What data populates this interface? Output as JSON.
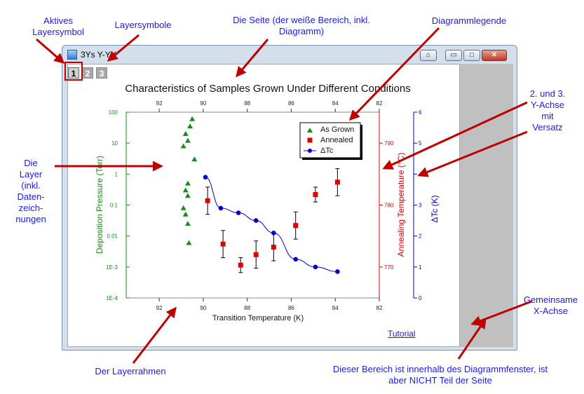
{
  "annotations": {
    "active_layer_icon": [
      "Aktives",
      "Layersymbol"
    ],
    "layer_icons": "Layersymbole",
    "page": [
      "Die Seite (der weiße Bereich, inkl.",
      "Diagramm)"
    ],
    "legend": "Diagrammlegende",
    "y_axes": [
      "2. und 3.",
      "Y-Achse",
      "mit",
      "Versatz"
    ],
    "layers": [
      "Die",
      "Layer",
      "(inkl.",
      "Daten-",
      "zeich-",
      "nungen"
    ],
    "x_axis": [
      "Gemeinsame",
      "X-Achse"
    ],
    "layer_frame": "Der Layerrahmen",
    "outside_area": [
      "Dieser Bereich ist innerhalb des Diagrammfenster, ist",
      "aber NICHT Teil der Seite"
    ]
  },
  "window": {
    "title": "3Ys Y-YY",
    "buttons": {
      "home": "⌂",
      "minimize": "▭",
      "maximize": "□",
      "close": "✕"
    },
    "layer_tabs": [
      "1",
      "2",
      "3"
    ],
    "active_layer": 1
  },
  "tutorial_link": "Tutorial",
  "colors": {
    "green": "#1a8c1a",
    "red": "#dd0000",
    "blue": "#0000cc",
    "annotation": "#1a1aee",
    "arrow": "#c00000"
  },
  "chart_data": {
    "type": "scatter",
    "title": "Characteristics of Samples Grown Under Different Conditions",
    "xlabel": "Transition Temperature (K)",
    "xlim": [
      93.5,
      82
    ],
    "x_ticks": [
      "92",
      "90",
      "88",
      "86",
      "84",
      "82"
    ],
    "y1": {
      "label": "Deposition Pressure (Torr)",
      "scale": "log",
      "ylim": [
        0.0001,
        100
      ],
      "tick_labels": [
        "1E-4",
        "1E-3",
        "0.01",
        "0.1",
        "1",
        "10",
        "100"
      ]
    },
    "y2": {
      "label": "Annealing Temperature (°C)",
      "ylim": [
        765,
        795
      ],
      "tick_labels": [
        "770",
        "780",
        "790"
      ]
    },
    "y3": {
      "label": "ΔTc (K)",
      "ylim": [
        0,
        6
      ],
      "tick_labels": [
        "0",
        "1",
        "2",
        "3",
        "4",
        "5",
        "6"
      ]
    },
    "legend": {
      "position": "top-right",
      "entries": [
        "As Grown",
        "Annealed",
        "ΔTc"
      ]
    },
    "series": [
      {
        "name": "As Grown",
        "axis": "y1",
        "color": "#1a8c1a",
        "marker": "triangle",
        "x": [
          90.5,
          90.6,
          90.8,
          90.7,
          90.9,
          90.4,
          90.7,
          90.8,
          90.7,
          90.9,
          90.8,
          90.7,
          90.65
        ],
        "y": [
          60,
          35,
          20,
          12,
          8,
          3,
          0.5,
          0.3,
          0.2,
          0.08,
          0.05,
          0.025,
          0.006
        ]
      },
      {
        "name": "Annealed",
        "axis": "y2",
        "color": "#dd0000",
        "marker": "square",
        "x": [
          89.8,
          89.1,
          88.3,
          87.6,
          86.8,
          85.8,
          84.9,
          83.9
        ],
        "y": [
          780.7,
          773.7,
          770.3,
          772.0,
          773.2,
          776.7,
          781.7,
          783.7
        ],
        "err": [
          2.2,
          2.2,
          1.2,
          2.2,
          2.2,
          2.2,
          1.2,
          2.2
        ]
      },
      {
        "name": "ΔTc",
        "axis": "y3",
        "color": "#0000cc",
        "marker": "circle",
        "line": true,
        "x": [
          89.9,
          89.2,
          88.4,
          87.6,
          86.8,
          85.8,
          84.9,
          83.9
        ],
        "y": [
          3.9,
          2.9,
          2.75,
          2.5,
          2.1,
          1.25,
          1.0,
          0.85
        ]
      }
    ]
  }
}
